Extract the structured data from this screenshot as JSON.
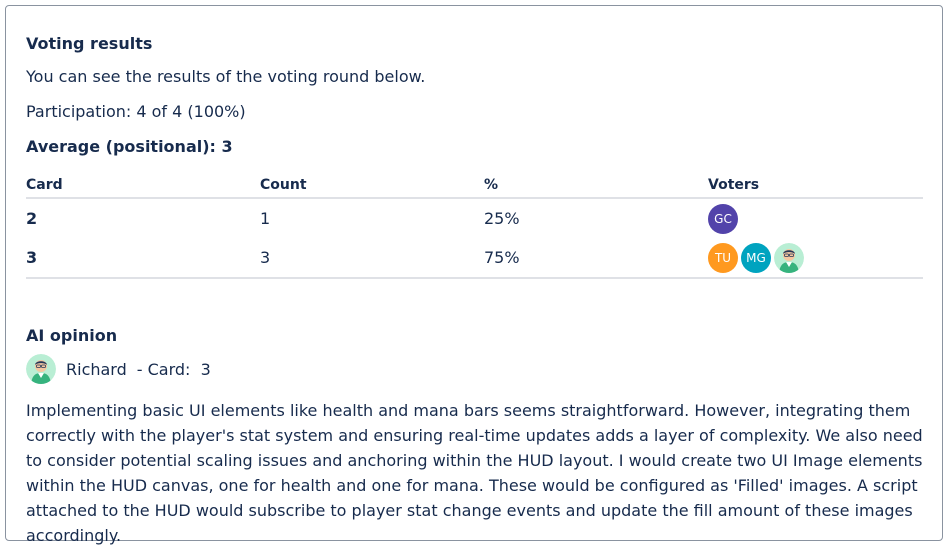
{
  "voting": {
    "title": "Voting results",
    "description": "You can see the results of the voting round below.",
    "participation": "Participation: 4 of 4 (100%)",
    "average": "Average (positional): 3",
    "columns": [
      "Card",
      "Count",
      "%",
      "Voters"
    ],
    "rows": [
      {
        "card": "2",
        "count": "1",
        "percent": "25%",
        "voters": [
          {
            "initials": "GC",
            "color": "#5243aa"
          }
        ]
      },
      {
        "card": "3",
        "count": "3",
        "percent": "75%",
        "voters": [
          {
            "initials": "TU",
            "color": "#ff991f"
          },
          {
            "initials": "MG",
            "color": "#00a3bf"
          },
          {
            "icon": "ai-avatar-icon"
          }
        ]
      }
    ]
  },
  "ai": {
    "title": "AI opinion",
    "name": "Richard",
    "card_text": "- Card:  3",
    "opinion": "Implementing basic UI elements like health and mana bars seems straightforward. However, integrating them correctly with the player's stat system and ensuring real-time updates adds a layer of complexity. We also need to consider potential scaling issues and anchoring within the HUD layout. I would create two UI Image elements within the HUD canvas, one for health and one for mana. These would be configured as 'Filled' images. A script attached to the HUD would subscribe to player stat change events and update the fill amount of these images accordingly."
  }
}
